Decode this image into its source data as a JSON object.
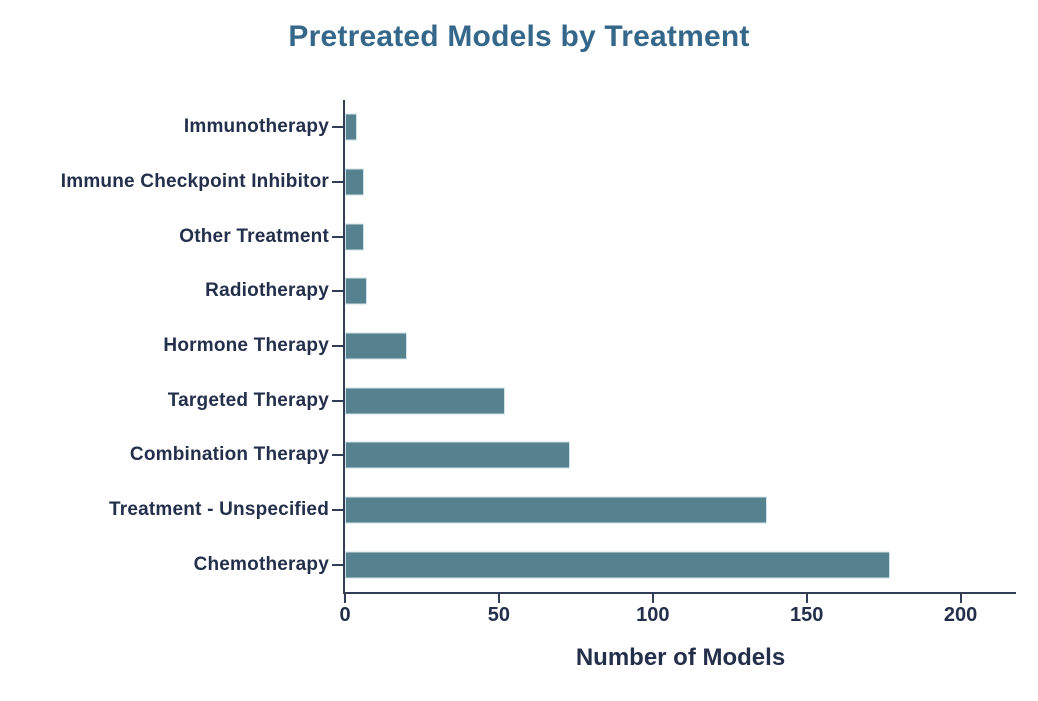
{
  "chart_data": {
    "type": "bar",
    "orientation": "horizontal",
    "title": "Pretreated Models by Treatment",
    "xlabel": "Number of Models",
    "categories": [
      "Immunotherapy",
      "Immune Checkpoint Inhibitor",
      "Other Treatment",
      "Radiotherapy",
      "Hormone Therapy",
      "Targeted Therapy",
      "Combination Therapy",
      "Treatment - Unspecified",
      "Chemotherapy"
    ],
    "values": [
      4,
      6,
      6,
      7,
      20,
      52,
      73,
      137,
      177
    ],
    "xticks": [
      0,
      50,
      100,
      150,
      200
    ],
    "xlim": [
      0,
      218
    ],
    "grid": false,
    "legend": null,
    "colors": {
      "bar_fill": "#56818f",
      "bar_border": "#cfe3ea",
      "title": "#35678a",
      "label_text": "#232f4b",
      "axis": "#323e58"
    }
  }
}
